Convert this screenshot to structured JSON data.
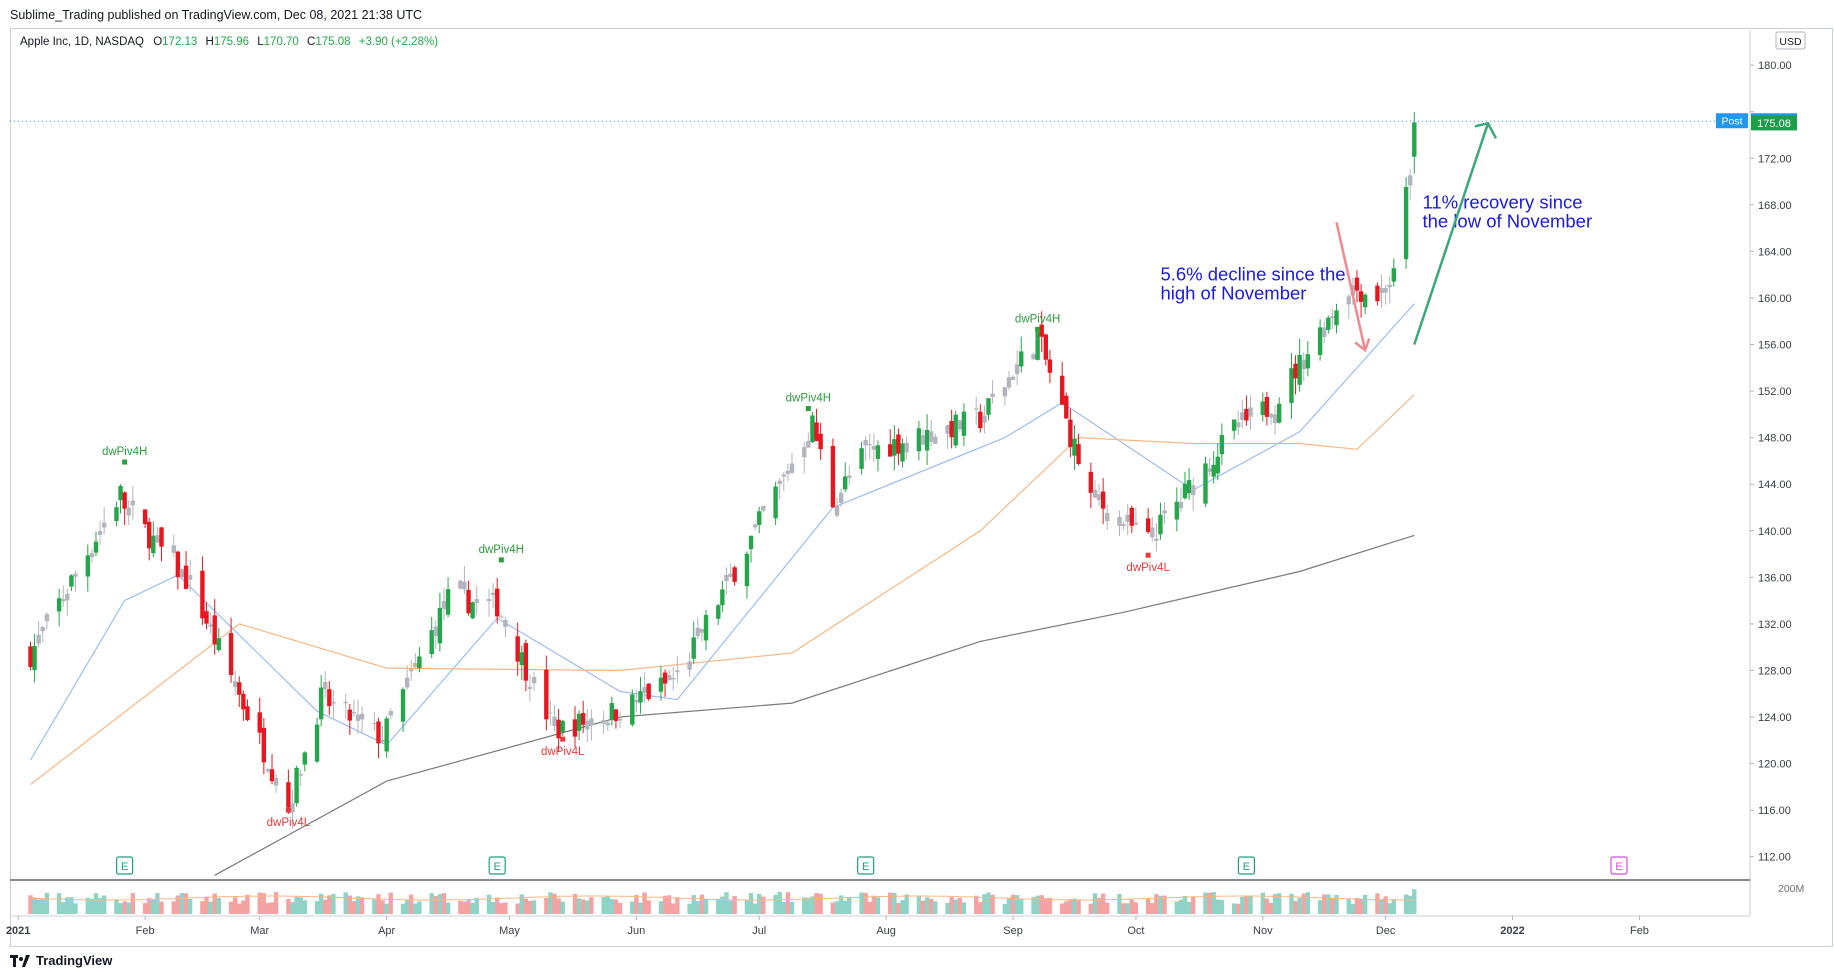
{
  "header": {
    "publish_line": "Sublime_Trading published on TradingView.com, Dec 08, 2021 21:38 UTC",
    "legend_prefix": "Apple Inc, 1D, NASDAQ",
    "o_label": "O",
    "o_value": "172.13",
    "h_label": "H",
    "h_value": "175.96",
    "l_label": "L",
    "l_value": "170.70",
    "c_label": "C",
    "c_value": "175.08",
    "change": "+3.90 (+2.28%)"
  },
  "currency": "USD",
  "price_tags": {
    "post_label": "Post",
    "post_value": "175.18",
    "last_value": "175.08"
  },
  "volume_axis_label": "200M",
  "footer": {
    "brand": "TradingView"
  },
  "colors": {
    "up": "#26a64a",
    "down": "#e8171f",
    "neutral": "#b2b5be",
    "ma_fast": "#9cbdf0",
    "ma_mid": "#f6b784",
    "ma_slow": "#7a7a7a",
    "annotation_text": "#1a1ae0",
    "pivot_high": "#2e9b3e",
    "pivot_low": "#e8393d",
    "earnings": "#1e9e85",
    "dividend": "#d74be5",
    "arrow_up": "#3aa879",
    "arrow_down": "#f08a8f",
    "post_tag": "#2196f3"
  },
  "chart_data": {
    "type": "candlestick",
    "symbol": "Apple Inc, 1D, NASDAQ",
    "y_axis": {
      "ticks": [
        112,
        116,
        120,
        124,
        128,
        132,
        136,
        140,
        144,
        148,
        152,
        156,
        160,
        164,
        168,
        172,
        176,
        180
      ],
      "tick_labels": [
        "112.00",
        "116.00",
        "120.00",
        "124.00",
        "128.00",
        "132.00",
        "136.00",
        "140.00",
        "144.00",
        "148.00",
        "152.00",
        "156.00",
        "160.00",
        "164.00",
        "168.00",
        "172.00",
        "",
        "180.00"
      ]
    },
    "x_axis": {
      "labels": [
        "2021",
        "Feb",
        "Mar",
        "Apr",
        "May",
        "Jun",
        "Jul",
        "Aug",
        "Sep",
        "Oct",
        "Nov",
        "Dec",
        "2022",
        "Feb"
      ],
      "bold": [
        "2021",
        "2022"
      ]
    },
    "ohlc_close_path": [
      {
        "date": "2021-01-04",
        "close": 129.4
      },
      {
        "date": "2021-01-26",
        "close": 143.2
      },
      {
        "date": "2021-01-27",
        "close": 142.1
      },
      {
        "date": "2021-02-12",
        "close": 135.4
      },
      {
        "date": "2021-03-08",
        "close": 116.4
      },
      {
        "date": "2021-03-16",
        "close": 125.6
      },
      {
        "date": "2021-03-31",
        "close": 122.2
      },
      {
        "date": "2021-04-16",
        "close": 134.2
      },
      {
        "date": "2021-04-28",
        "close": 133.6
      },
      {
        "date": "2021-05-12",
        "close": 122.8
      },
      {
        "date": "2021-05-28",
        "close": 124.6
      },
      {
        "date": "2021-06-11",
        "close": 127.4
      },
      {
        "date": "2021-07-14",
        "close": 149.2
      },
      {
        "date": "2021-07-19",
        "close": 142.5
      },
      {
        "date": "2021-07-27",
        "close": 146.8
      },
      {
        "date": "2021-08-24",
        "close": 149.6
      },
      {
        "date": "2021-09-07",
        "close": 156.7
      },
      {
        "date": "2021-09-20",
        "close": 142.9
      },
      {
        "date": "2021-10-04",
        "close": 139.1
      },
      {
        "date": "2021-10-25",
        "close": 148.7
      },
      {
        "date": "2021-11-04",
        "close": 151.0
      },
      {
        "date": "2021-11-22",
        "close": 161.0
      },
      {
        "date": "2021-11-29",
        "close": 160.2
      },
      {
        "date": "2021-12-03",
        "close": 161.8
      },
      {
        "date": "2021-12-07",
        "close": 171.2
      },
      {
        "date": "2021-12-08",
        "open": 172.13,
        "high": 175.96,
        "low": 170.7,
        "close": 175.08
      }
    ],
    "moving_averages": [
      {
        "role": "fast",
        "points": [
          {
            "date": "2021-01-04",
            "value": 120.3
          },
          {
            "date": "2021-01-27",
            "value": 134.0
          },
          {
            "date": "2021-02-09",
            "value": 136.2
          },
          {
            "date": "2021-03-15",
            "value": 124.5
          },
          {
            "date": "2021-04-01",
            "value": 121.6
          },
          {
            "date": "2021-04-28",
            "value": 132.5
          },
          {
            "date": "2021-05-28",
            "value": 126.2
          },
          {
            "date": "2021-06-11",
            "value": 125.5
          },
          {
            "date": "2021-07-19",
            "value": 142.0
          },
          {
            "date": "2021-08-30",
            "value": 148.0
          },
          {
            "date": "2021-09-13",
            "value": 151.0
          },
          {
            "date": "2021-10-15",
            "value": 143.5
          },
          {
            "date": "2021-11-10",
            "value": 148.5
          },
          {
            "date": "2021-12-08",
            "value": 159.5
          }
        ]
      },
      {
        "role": "mid",
        "points": [
          {
            "date": "2021-01-04",
            "value": 118.2
          },
          {
            "date": "2021-02-24",
            "value": 132.0
          },
          {
            "date": "2021-04-01",
            "value": 128.2
          },
          {
            "date": "2021-05-28",
            "value": 128.0
          },
          {
            "date": "2021-07-09",
            "value": 129.5
          },
          {
            "date": "2021-08-24",
            "value": 140.0
          },
          {
            "date": "2021-09-17",
            "value": 148.0
          },
          {
            "date": "2021-10-15",
            "value": 147.5
          },
          {
            "date": "2021-11-10",
            "value": 147.5
          },
          {
            "date": "2021-11-24",
            "value": 147.0
          },
          {
            "date": "2021-12-08",
            "value": 151.7
          }
        ]
      },
      {
        "role": "slow",
        "points": [
          {
            "date": "2021-02-18",
            "value": 110.4
          },
          {
            "date": "2021-04-01",
            "value": 118.5
          },
          {
            "date": "2021-05-28",
            "value": 124.0
          },
          {
            "date": "2021-07-09",
            "value": 125.2
          },
          {
            "date": "2021-08-24",
            "value": 130.5
          },
          {
            "date": "2021-09-28",
            "value": 133.0
          },
          {
            "date": "2021-11-10",
            "value": 136.5
          },
          {
            "date": "2021-12-08",
            "value": 139.6
          }
        ]
      }
    ],
    "pivot_labels": [
      {
        "text": "dwPiv4H",
        "date": "2021-01-27",
        "price": 145.9,
        "kind": "high"
      },
      {
        "text": "dwPiv4L",
        "date": "2021-03-08",
        "price": 116.0,
        "kind": "low"
      },
      {
        "text": "dwPiv4H",
        "date": "2021-04-29",
        "price": 137.5,
        "kind": "high"
      },
      {
        "text": "dwPiv4L",
        "date": "2021-05-14",
        "price": 122.1,
        "kind": "low"
      },
      {
        "text": "dwPiv4H",
        "date": "2021-07-13",
        "price": 150.5,
        "kind": "high"
      },
      {
        "text": "dwPiv4H",
        "date": "2021-09-07",
        "price": 157.3,
        "kind": "high"
      },
      {
        "text": "dwPiv4L",
        "date": "2021-10-04",
        "price": 137.9,
        "kind": "low"
      }
    ],
    "annotations": [
      {
        "text_lines": [
          "5.6% decline since the",
          "high of November"
        ],
        "date": "2021-10-07",
        "price": 161.5
      },
      {
        "text_lines": [
          "11% recovery since",
          "the low of November"
        ],
        "date": "2021-12-10",
        "price": 167.7
      }
    ],
    "event_markers": [
      {
        "label": "E",
        "date": "2021-01-27",
        "kind": "earnings"
      },
      {
        "label": "E",
        "date": "2021-04-28",
        "kind": "earnings"
      },
      {
        "label": "E",
        "date": "2021-07-27",
        "kind": "earnings"
      },
      {
        "label": "E",
        "date": "2021-10-28",
        "kind": "earnings"
      },
      {
        "label": "E",
        "date": "2022-01-27",
        "kind": "dividend"
      }
    ],
    "last_price_line": 175.18
  }
}
